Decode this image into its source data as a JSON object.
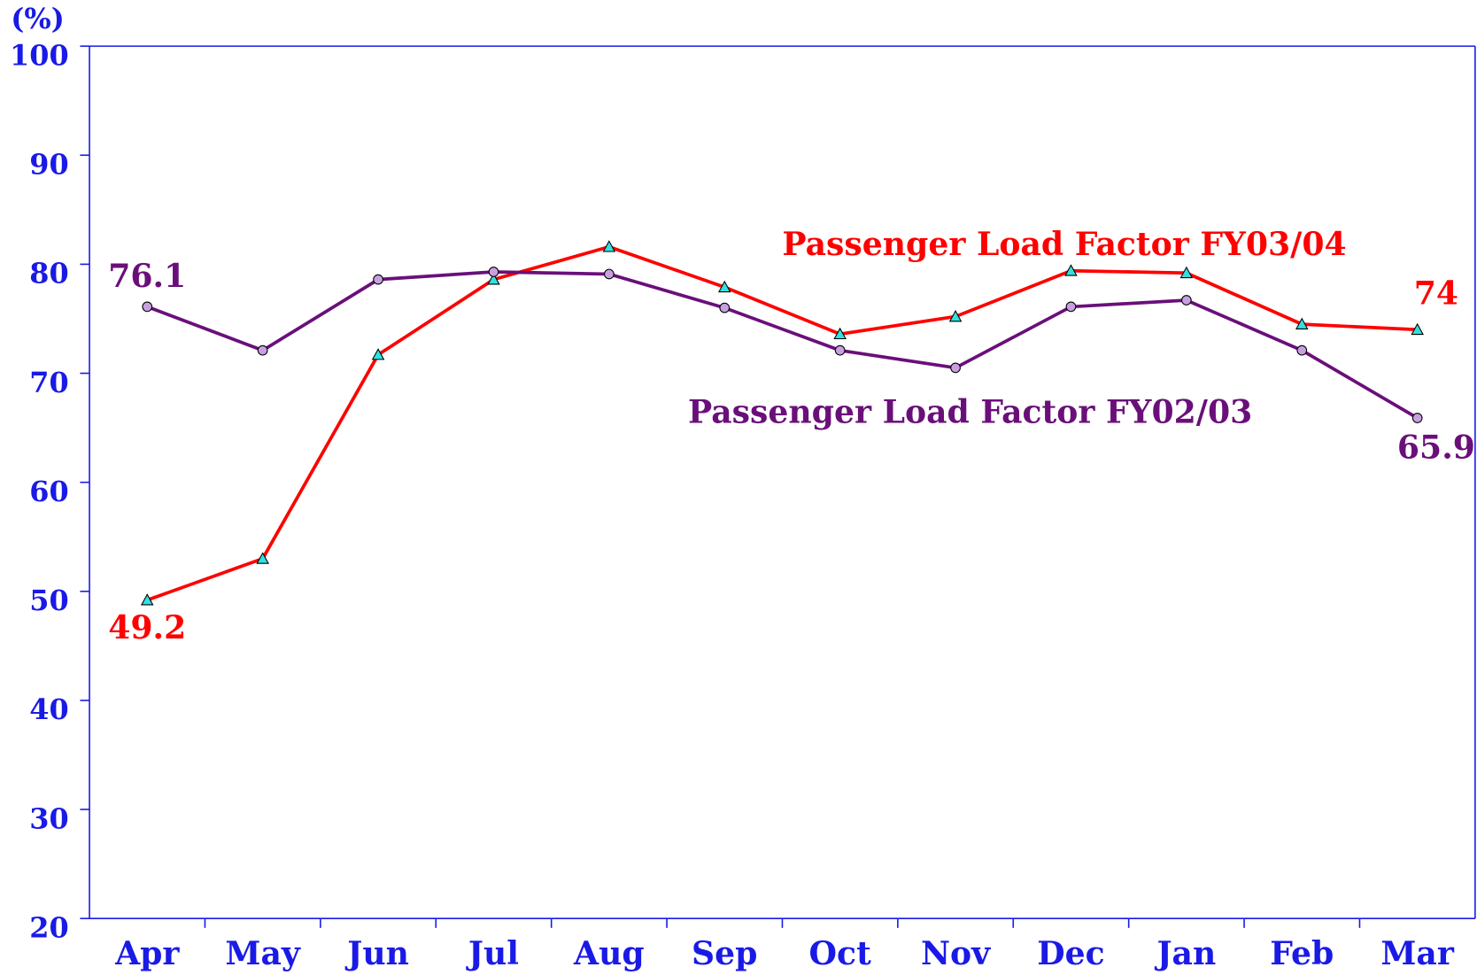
{
  "chart_data": {
    "type": "line",
    "y_label": "(%)",
    "categories": [
      "Apr",
      "May",
      "Jun",
      "Jul",
      "Aug",
      "Sep",
      "Oct",
      "Nov",
      "Dec",
      "Jan",
      "Feb",
      "Mar"
    ],
    "series": [
      {
        "name": "Passenger Load Factor FY03/04",
        "color": "#ff0000",
        "marker": "triangle",
        "marker_color": "#33e0e0",
        "values": [
          49.2,
          53.0,
          71.7,
          78.6,
          81.6,
          77.9,
          73.6,
          75.2,
          79.4,
          79.2,
          74.5,
          74.0
        ]
      },
      {
        "name": "Passenger Load Factor FY02/03",
        "color": "#6a0f7a",
        "marker": "circle",
        "marker_color": "#c8a0e0",
        "values": [
          76.1,
          72.1,
          78.6,
          79.3,
          79.1,
          76.0,
          72.1,
          70.5,
          76.1,
          76.7,
          72.1,
          65.9
        ]
      }
    ],
    "ylim": [
      20,
      100
    ],
    "yticks": [
      20,
      30,
      40,
      50,
      60,
      70,
      80,
      90,
      100
    ],
    "grid": false
  }
}
